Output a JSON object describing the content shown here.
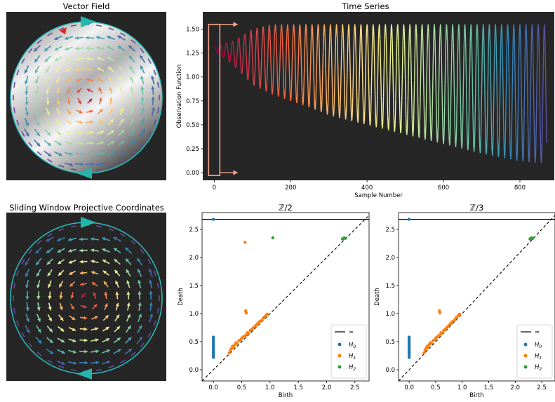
{
  "titles": {
    "vector_field": "Vector Field",
    "time_series": "Time Series",
    "sliding_window": "Sliding Window Projective Coordinates",
    "z2": "ℤ/2",
    "z3": "ℤ/3"
  },
  "colors": {
    "panel_bg": "#262626",
    "circle": "#2bbfbf",
    "marker": "#25b5ac",
    "window_box": "#f4a48c",
    "h0": "#1f77b4",
    "h1": "#ff7f0e",
    "h2": "#2ca02c",
    "spectral": [
      "#9e0142",
      "#d53e4f",
      "#f46d43",
      "#fdae61",
      "#fee08b",
      "#e6f598",
      "#abdda4",
      "#66c2a5",
      "#3288bd",
      "#5e4fa2"
    ]
  },
  "chart_data": [
    {
      "type": "line",
      "title": "Time Series",
      "xlabel": "Sample Number",
      "ylabel": "Observation Function",
      "xlim": [
        -30,
        890
      ],
      "ylim": [
        -0.08,
        1.68
      ],
      "xticks": [
        0,
        200,
        400,
        600,
        800
      ],
      "yticks": [
        0.0,
        0.25,
        0.5,
        0.75,
        1.0,
        1.25,
        1.5
      ],
      "series": [
        {
          "x": [
            0,
            50,
            100,
            150,
            200,
            250,
            300,
            350,
            400,
            450,
            500,
            550,
            600,
            650,
            700,
            750,
            800,
            850,
            870
          ],
          "upper": [
            1.32,
            1.38,
            1.5,
            1.55,
            1.55,
            1.55,
            1.55,
            1.55,
            1.55,
            1.55,
            1.55,
            1.55,
            1.55,
            1.55,
            1.55,
            1.55,
            1.55,
            1.55,
            1.55
          ],
          "lower": [
            1.28,
            1.12,
            0.92,
            0.82,
            0.75,
            0.68,
            0.6,
            0.55,
            0.5,
            0.45,
            0.4,
            0.35,
            0.3,
            0.25,
            0.2,
            0.16,
            0.12,
            0.1,
            0.1
          ],
          "period": 16
        }
      ],
      "annotations": [
        "window box at x≈0 spanning y 0 to 1.55 with arrows pointing right"
      ]
    },
    {
      "type": "scatter",
      "title": "ℤ/2",
      "xlabel": "Birth",
      "ylabel": "Death",
      "xlim": [
        -0.2,
        2.75
      ],
      "ylim": [
        -0.2,
        2.8
      ],
      "xticks": [
        0.0,
        0.5,
        1.0,
        1.5,
        2.0,
        2.5
      ],
      "yticks": [
        0.0,
        0.5,
        1.0,
        1.5,
        2.0,
        2.5
      ],
      "infinity_y": 2.68,
      "legend": {
        "position": "lower-right",
        "items": [
          "∞",
          "H0",
          "H1",
          "H2"
        ]
      },
      "series": [
        {
          "name": "H0",
          "points": [
            [
              0,
              2.68
            ],
            [
              0,
              0.58
            ],
            [
              0,
              0.55
            ],
            [
              0,
              0.52
            ],
            [
              0,
              0.49
            ],
            [
              0,
              0.46
            ],
            [
              0,
              0.43
            ],
            [
              0,
              0.4
            ],
            [
              0,
              0.37
            ],
            [
              0,
              0.34
            ],
            [
              0,
              0.31
            ],
            [
              0,
              0.28
            ],
            [
              0,
              0.25
            ],
            [
              0,
              0.22
            ]
          ]
        },
        {
          "name": "H1",
          "points": [
            [
              0.56,
              2.27
            ],
            [
              0.57,
              1.05
            ],
            [
              0.58,
              1.01
            ],
            [
              0.28,
              0.3
            ],
            [
              0.3,
              0.35
            ],
            [
              0.32,
              0.38
            ],
            [
              0.34,
              0.42
            ],
            [
              0.36,
              0.4
            ],
            [
              0.38,
              0.45
            ],
            [
              0.4,
              0.48
            ],
            [
              0.42,
              0.47
            ],
            [
              0.45,
              0.52
            ],
            [
              0.48,
              0.53
            ],
            [
              0.5,
              0.56
            ],
            [
              0.52,
              0.58
            ],
            [
              0.55,
              0.6
            ],
            [
              0.58,
              0.62
            ],
            [
              0.6,
              0.66
            ],
            [
              0.62,
              0.65
            ],
            [
              0.65,
              0.7
            ],
            [
              0.68,
              0.72
            ],
            [
              0.7,
              0.74
            ],
            [
              0.72,
              0.76
            ],
            [
              0.75,
              0.79
            ],
            [
              0.78,
              0.82
            ],
            [
              0.8,
              0.84
            ],
            [
              0.82,
              0.86
            ],
            [
              0.85,
              0.88
            ],
            [
              0.88,
              0.92
            ],
            [
              0.9,
              0.94
            ],
            [
              0.93,
              0.97
            ],
            [
              0.95,
              0.99
            ]
          ]
        },
        {
          "name": "H2",
          "points": [
            [
              1.05,
              2.35
            ],
            [
              2.28,
              2.33
            ],
            [
              2.31,
              2.35
            ],
            [
              2.33,
              2.34
            ]
          ]
        }
      ]
    },
    {
      "type": "scatter",
      "title": "ℤ/3",
      "xlabel": "Birth",
      "ylabel": "Death",
      "xlim": [
        -0.2,
        2.75
      ],
      "ylim": [
        -0.2,
        2.8
      ],
      "xticks": [
        0.0,
        0.5,
        1.0,
        1.5,
        2.0,
        2.5
      ],
      "yticks": [
        0.0,
        0.5,
        1.0,
        1.5,
        2.0,
        2.5
      ],
      "infinity_y": 2.68,
      "legend": {
        "position": "lower-right",
        "items": [
          "∞",
          "H0",
          "H1",
          "H2"
        ]
      },
      "series": [
        {
          "name": "H0",
          "points": [
            [
              0,
              2.68
            ],
            [
              0,
              0.58
            ],
            [
              0,
              0.55
            ],
            [
              0,
              0.52
            ],
            [
              0,
              0.49
            ],
            [
              0,
              0.46
            ],
            [
              0,
              0.43
            ],
            [
              0,
              0.4
            ],
            [
              0,
              0.37
            ],
            [
              0,
              0.34
            ],
            [
              0,
              0.31
            ],
            [
              0,
              0.28
            ],
            [
              0,
              0.25
            ],
            [
              0,
              0.22
            ]
          ]
        },
        {
          "name": "H1",
          "points": [
            [
              0.57,
              1.05
            ],
            [
              0.58,
              1.01
            ],
            [
              0.28,
              0.3
            ],
            [
              0.3,
              0.35
            ],
            [
              0.32,
              0.38
            ],
            [
              0.34,
              0.42
            ],
            [
              0.36,
              0.4
            ],
            [
              0.38,
              0.45
            ],
            [
              0.4,
              0.48
            ],
            [
              0.42,
              0.47
            ],
            [
              0.45,
              0.52
            ],
            [
              0.48,
              0.53
            ],
            [
              0.5,
              0.56
            ],
            [
              0.52,
              0.58
            ],
            [
              0.55,
              0.6
            ],
            [
              0.58,
              0.62
            ],
            [
              0.6,
              0.66
            ],
            [
              0.62,
              0.65
            ],
            [
              0.65,
              0.7
            ],
            [
              0.68,
              0.72
            ],
            [
              0.7,
              0.74
            ],
            [
              0.72,
              0.76
            ],
            [
              0.75,
              0.79
            ],
            [
              0.78,
              0.82
            ],
            [
              0.8,
              0.84
            ],
            [
              0.82,
              0.86
            ],
            [
              0.85,
              0.88
            ],
            [
              0.88,
              0.92
            ],
            [
              0.9,
              0.94
            ],
            [
              0.93,
              0.97
            ],
            [
              0.95,
              0.99
            ]
          ]
        },
        {
          "name": "H2",
          "points": [
            [
              2.28,
              2.33
            ],
            [
              2.31,
              2.35
            ],
            [
              2.33,
              2.34
            ]
          ]
        }
      ]
    }
  ]
}
